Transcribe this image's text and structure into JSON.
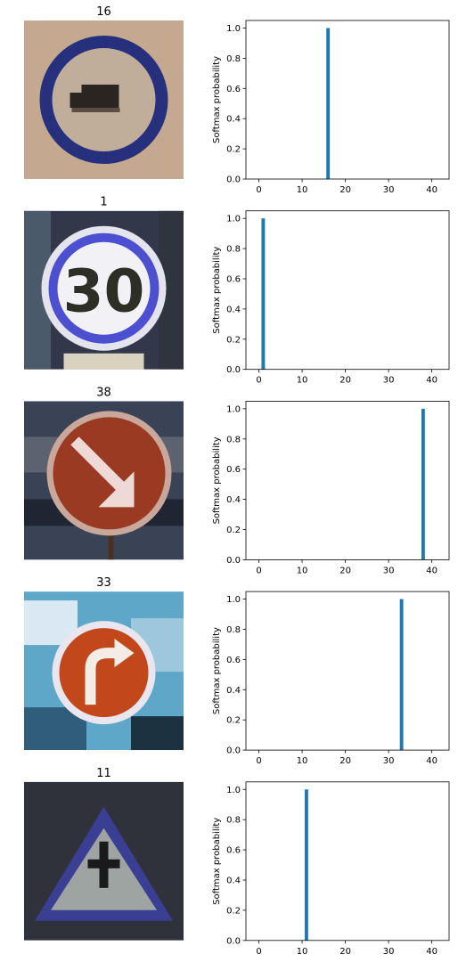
{
  "chart_data": [
    {
      "type": "bar",
      "title": "",
      "xlabel": "",
      "ylabel": "Softmax probability",
      "xlim": [
        -3,
        44
      ],
      "ylim": [
        0,
        1.05
      ],
      "xticks": [
        0,
        10,
        20,
        30,
        40
      ],
      "yticks": [
        0.0,
        0.2,
        0.4,
        0.6,
        0.8,
        1.0
      ],
      "grid": false,
      "series": [
        {
          "x": [
            16
          ],
          "values": [
            1.0
          ]
        }
      ],
      "image": {
        "label": "16",
        "sign": "no-vehicles-over-3.5t",
        "colors": {
          "bg": "#c4a890",
          "ring": "#26307c",
          "inner": "#c0ad9a",
          "glyph": "#2a2520"
        }
      }
    },
    {
      "type": "bar",
      "title": "",
      "xlabel": "",
      "ylabel": "Softmax probability",
      "xlim": [
        -3,
        44
      ],
      "ylim": [
        0,
        1.05
      ],
      "xticks": [
        0,
        10,
        20,
        30,
        40
      ],
      "yticks": [
        0.0,
        0.2,
        0.4,
        0.6,
        0.8,
        1.0
      ],
      "grid": false,
      "series": [
        {
          "x": [
            1
          ],
          "values": [
            1.0
          ]
        }
      ],
      "image": {
        "label": "1",
        "sign": "speed-limit-30",
        "text": "30",
        "colors": {
          "bg": "#323849",
          "ring": "#4b4fd0",
          "inner": "#f2f2f6",
          "glyph": "#2d2f26"
        }
      }
    },
    {
      "type": "bar",
      "title": "",
      "xlabel": "",
      "ylabel": "Softmax probability",
      "xlim": [
        -3,
        44
      ],
      "ylim": [
        0,
        1.05
      ],
      "xticks": [
        0,
        10,
        20,
        30,
        40
      ],
      "yticks": [
        0.0,
        0.2,
        0.4,
        0.6,
        0.8,
        1.0
      ],
      "grid": false,
      "series": [
        {
          "x": [
            38
          ],
          "values": [
            1.0
          ]
        }
      ],
      "image": {
        "label": "38",
        "sign": "keep-right",
        "colors": {
          "bg": "#3a4356",
          "ring": "#c9a79a",
          "inner": "#9a3a22",
          "glyph": "#efd9d6"
        }
      }
    },
    {
      "type": "bar",
      "title": "",
      "xlabel": "",
      "ylabel": "Softmax probability",
      "xlim": [
        -3,
        44
      ],
      "ylim": [
        0,
        1.05
      ],
      "xticks": [
        0,
        10,
        20,
        30,
        40
      ],
      "yticks": [
        0.0,
        0.2,
        0.4,
        0.6,
        0.8,
        1.0
      ],
      "grid": false,
      "series": [
        {
          "x": [
            33
          ],
          "values": [
            1.0
          ]
        }
      ],
      "image": {
        "label": "33",
        "sign": "turn-right-ahead",
        "colors": {
          "bg": "#5fa7c9",
          "ring": "#e9e6ef",
          "inner": "#c2481c",
          "glyph": "#f3ede6"
        }
      }
    },
    {
      "type": "bar",
      "title": "",
      "xlabel": "",
      "ylabel": "Softmax probability",
      "xlim": [
        -3,
        44
      ],
      "ylim": [
        0,
        1.05
      ],
      "xticks": [
        0,
        10,
        20,
        30,
        40
      ],
      "yticks": [
        0.0,
        0.2,
        0.4,
        0.6,
        0.8,
        1.0
      ],
      "grid": false,
      "series": [
        {
          "x": [
            11
          ],
          "values": [
            1.0
          ]
        }
      ],
      "image": {
        "label": "11",
        "sign": "right-of-way-at-next-intersection",
        "colors": {
          "bg": "#2f323a",
          "ring": "#3b3f93",
          "inner": "#9ea4a1",
          "glyph": "#1a1a1c"
        }
      }
    }
  ],
  "bar_color": "#1f77b4"
}
